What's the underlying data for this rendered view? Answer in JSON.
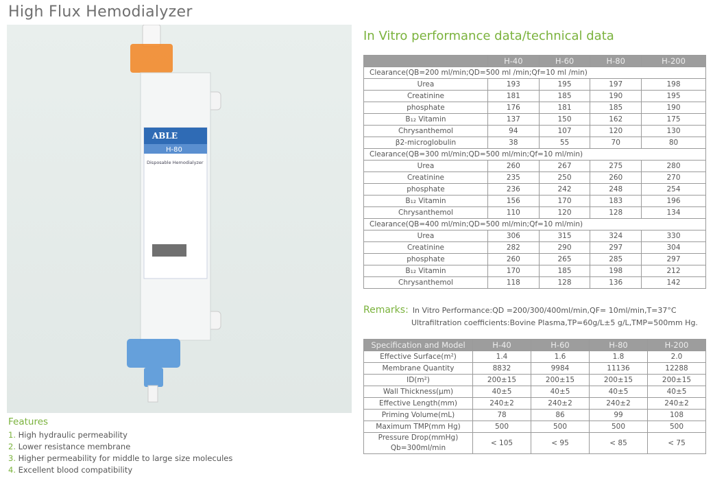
{
  "title": "High Flux Hemodialyzer",
  "product": {
    "brand": "ABLE",
    "model": "H-80",
    "label": "Disposable Hemodialyzer"
  },
  "performance": {
    "heading": "In Vitro performance data/technical data",
    "columns": [
      "",
      "H-40",
      "H-60",
      "H-80",
      "H-200"
    ],
    "sections": [
      {
        "label": "Clearance(QB=200 ml/min;QD=500 ml /min;Qf=10 ml /min)",
        "rows": [
          [
            "Urea",
            "193",
            "195",
            "197",
            "198"
          ],
          [
            "Creatinine",
            "181",
            "185",
            "190",
            "195"
          ],
          [
            "phosphate",
            "176",
            "181",
            "185",
            "190"
          ],
          [
            "B₁₂ Vitamin",
            "137",
            "150",
            "162",
            "175"
          ],
          [
            "Chrysanthemol",
            "94",
            "107",
            "120",
            "130"
          ],
          [
            "β2-microglobulin",
            "38",
            "55",
            "70",
            "80"
          ]
        ]
      },
      {
        "label": "Clearance(QB=300 ml/min;QD=500 ml/min;Qf=10 ml/min)",
        "rows": [
          [
            "Urea",
            "260",
            "267",
            "275",
            "280"
          ],
          [
            "Creatinine",
            "235",
            "250",
            "260",
            "270"
          ],
          [
            "phosphate",
            "236",
            "242",
            "248",
            "254"
          ],
          [
            "B₁₂ Vitamin",
            "156",
            "170",
            "183",
            "196"
          ],
          [
            "Chrysanthemol",
            "110",
            "120",
            "128",
            "134"
          ]
        ]
      },
      {
        "label": "Clearance(QB=400 ml/min;QD=500 ml/min;Qf=10 ml/min)",
        "rows": [
          [
            "Urea",
            "306",
            "315",
            "324",
            "330"
          ],
          [
            "Creatinine",
            "282",
            "290",
            "297",
            "304"
          ],
          [
            "phosphate",
            "260",
            "265",
            "285",
            "297"
          ],
          [
            "B₁₂ Vitamin",
            "170",
            "185",
            "198",
            "212"
          ],
          [
            "Chrysanthemol",
            "118",
            "128",
            "136",
            "142"
          ]
        ]
      }
    ]
  },
  "remarks": {
    "label": "Remarks:",
    "line1": "In Vitro Performance:QD =200/300/400ml/min,QF= 10ml/min,T=37°C",
    "line2": "Ultrafiltration coefficients:Bovine Plasma,TP=60g/L±5 g/L,TMP=500mm Hg."
  },
  "spec": {
    "columns": [
      "Specification and Model",
      "H-40",
      "H-60",
      "H-80",
      "H-200"
    ],
    "rows": [
      [
        "Effective Surface(m²)",
        "1.4",
        "1.6",
        "1.8",
        "2.0"
      ],
      [
        "Membrane Quantity",
        "8832",
        "9984",
        "11136",
        "12288"
      ],
      [
        "ID(m²)",
        "200±15",
        "200±15",
        "200±15",
        "200±15"
      ],
      [
        "Wall Thickness(μm)",
        "40±5",
        "40±5",
        "40±5",
        "40±5"
      ],
      [
        "Effective Length(mm)",
        "240±2",
        "240±2",
        "240±2",
        "240±2"
      ],
      [
        "Priming Volume(mL)",
        "78",
        "86",
        "99",
        "108"
      ],
      [
        "Maximum TMP(mm Hg)",
        "500",
        "500",
        "500",
        "500"
      ],
      [
        "Pressure Drop(mmHg)\nQb=300ml/min",
        "< 105",
        "< 95",
        "< 85",
        "< 75"
      ]
    ]
  },
  "features": {
    "heading": "Features",
    "items": [
      "High hydraulic permeability",
      "Lower resistance membrane",
      "Higher permeability for middle to large size molecules",
      "Excellent blood compatibility"
    ]
  }
}
